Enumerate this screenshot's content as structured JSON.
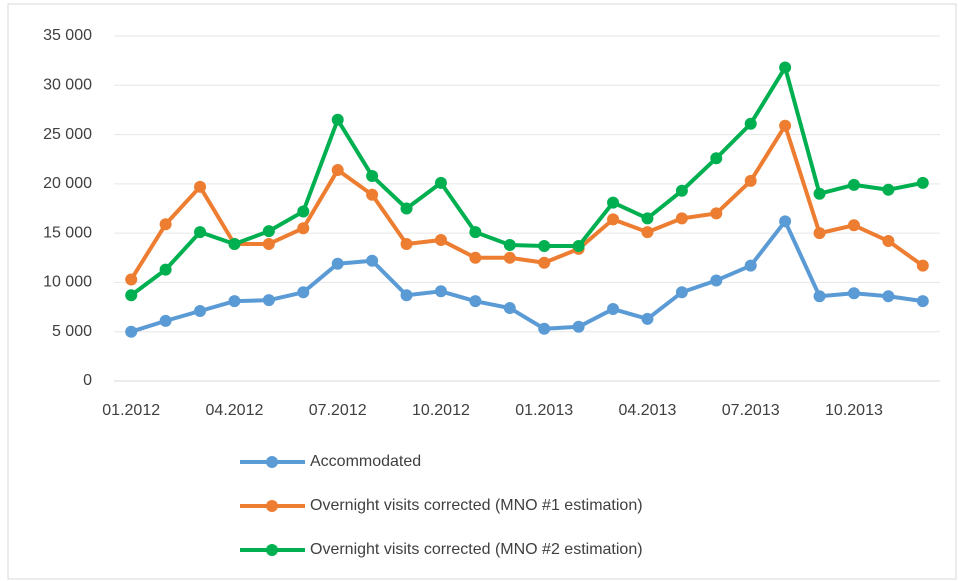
{
  "chart_data": {
    "type": "line",
    "categories": [
      "01.2012",
      null,
      null,
      "04.2012",
      null,
      null,
      "07.2012",
      null,
      null,
      "10.2012",
      null,
      null,
      "01.2013",
      null,
      null,
      "04.2013",
      null,
      null,
      "07.2013",
      null,
      null,
      "10.2013",
      null,
      null
    ],
    "series": [
      {
        "name": "Accommodated",
        "color": "#5b9bd5",
        "values": [
          5000,
          6100,
          7100,
          8100,
          8200,
          9000,
          11900,
          12200,
          8700,
          9100,
          8100,
          7400,
          5300,
          5500,
          7300,
          6300,
          9000,
          10200,
          11700,
          16200,
          8600,
          8900,
          8600,
          8100
        ]
      },
      {
        "name": "Overnight visits corrected (MNO #1 estimation)",
        "color": "#ed7d31",
        "values": [
          10300,
          15900,
          19700,
          13900,
          13900,
          15500,
          21400,
          18900,
          13900,
          14300,
          12500,
          12500,
          12000,
          13400,
          16400,
          15100,
          16500,
          17000,
          20300,
          25900,
          15000,
          15800,
          14200,
          11700
        ]
      },
      {
        "name": "Overnight visits corrected (MNO #2 estimation)",
        "color": "#00b050",
        "values": [
          8700,
          11300,
          15100,
          13900,
          15200,
          17200,
          26500,
          20800,
          17500,
          20100,
          15100,
          13800,
          13700,
          13700,
          18100,
          16500,
          19300,
          22600,
          26100,
          31800,
          19000,
          19900,
          19400,
          20100
        ]
      }
    ],
    "ylim": [
      0,
      35000
    ],
    "yticks": [
      0,
      {
        "value": 5000,
        "label": "5 000"
      },
      {
        "value": 10000,
        "label": "10 000"
      },
      {
        "value": 15000,
        "label": "15 000"
      },
      {
        "value": 20000,
        "label": "20 000"
      },
      {
        "value": 25000,
        "label": "25 000"
      },
      {
        "value": 30000,
        "label": "30 000"
      },
      {
        "value": 35000,
        "label": "35 000"
      }
    ],
    "grid": true
  }
}
